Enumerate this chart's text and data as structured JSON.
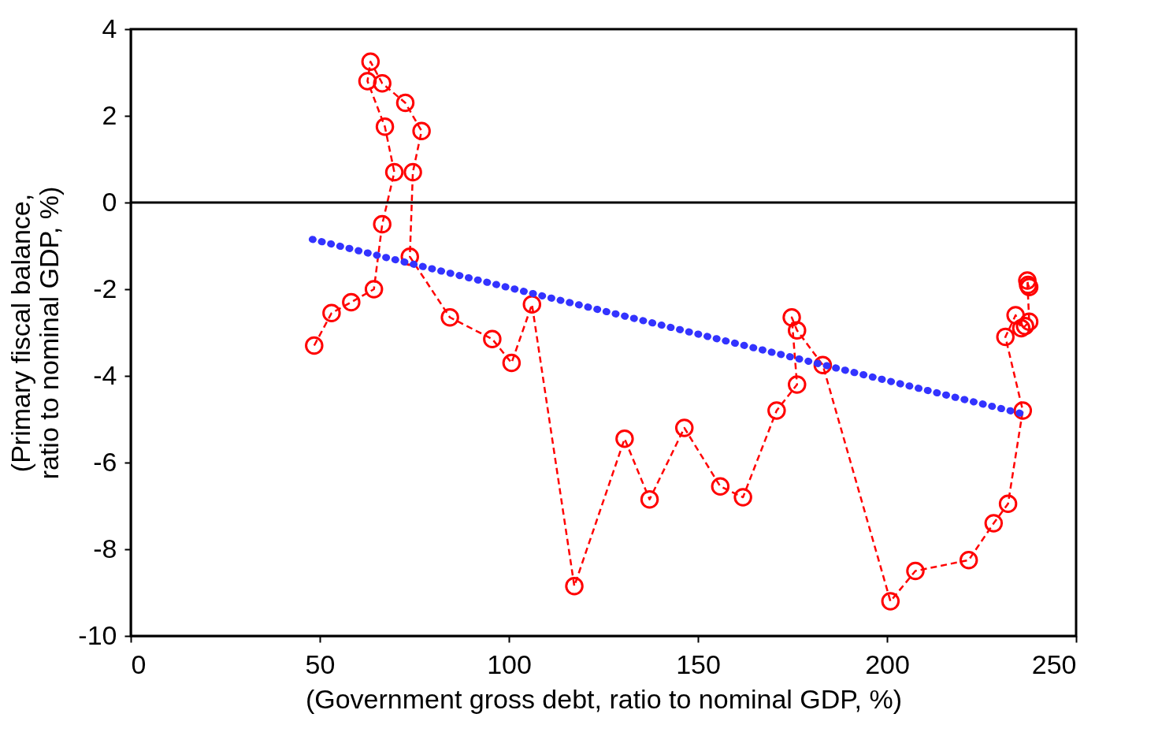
{
  "chart_data": {
    "type": "line",
    "xlabel": "(Government gross debt, ratio to nominal GDP, %)",
    "ylabel": "(Primary fiscal balance,\nratio to nominal GDP, %)",
    "xlim": [
      0,
      250
    ],
    "xticks": [
      0,
      50,
      100,
      150,
      200,
      250
    ],
    "ylim": [
      -10,
      4
    ],
    "yticks": [
      -10,
      -8,
      -6,
      -4,
      -2,
      0,
      2,
      4
    ],
    "grid": false,
    "legend": false,
    "ref_lines": [
      {
        "axis": "y",
        "value": 0,
        "color": "#000000",
        "line_style": "solid"
      }
    ],
    "series": [
      {
        "color": "#ff0000",
        "marker": "circle",
        "line_style": "dashed",
        "x": [
          48.5,
          53.1,
          58.3,
          64.3,
          66.5,
          69.7,
          67.2,
          62.6,
          63.4,
          66.5,
          72.6,
          76.9,
          74.6,
          73.8,
          84.4,
          95.6,
          100.7,
          106.1,
          117.3,
          130.6,
          137.2,
          146.4,
          155.9,
          161.9,
          170.8,
          176.2,
          174.8,
          176.2,
          183.0,
          200.9,
          207.5,
          221.6,
          228.2,
          232.0,
          235.9,
          231.3,
          234.0,
          235.5,
          236.5,
          237.6,
          237.1,
          237.3,
          237.6
        ],
        "values": [
          -3.3,
          -2.55,
          -2.3,
          -2.0,
          -0.5,
          0.7,
          1.75,
          2.8,
          3.25,
          2.75,
          2.3,
          1.65,
          0.7,
          -1.25,
          -2.65,
          -3.15,
          -3.7,
          -2.35,
          -8.85,
          -5.45,
          -6.85,
          -5.2,
          -6.55,
          -6.8,
          -4.8,
          -4.2,
          -2.65,
          -2.95,
          -3.75,
          -9.2,
          -8.5,
          -8.25,
          -7.4,
          -6.95,
          -4.8,
          -3.1,
          -2.6,
          -2.9,
          -2.85,
          -2.75,
          -1.8,
          -1.9,
          -1.95
        ]
      },
      {
        "color": "#3333ff",
        "marker": "none",
        "line_style": "dotted",
        "x": [
          48,
          237
        ],
        "values": [
          -0.85,
          -4.9
        ]
      }
    ]
  }
}
